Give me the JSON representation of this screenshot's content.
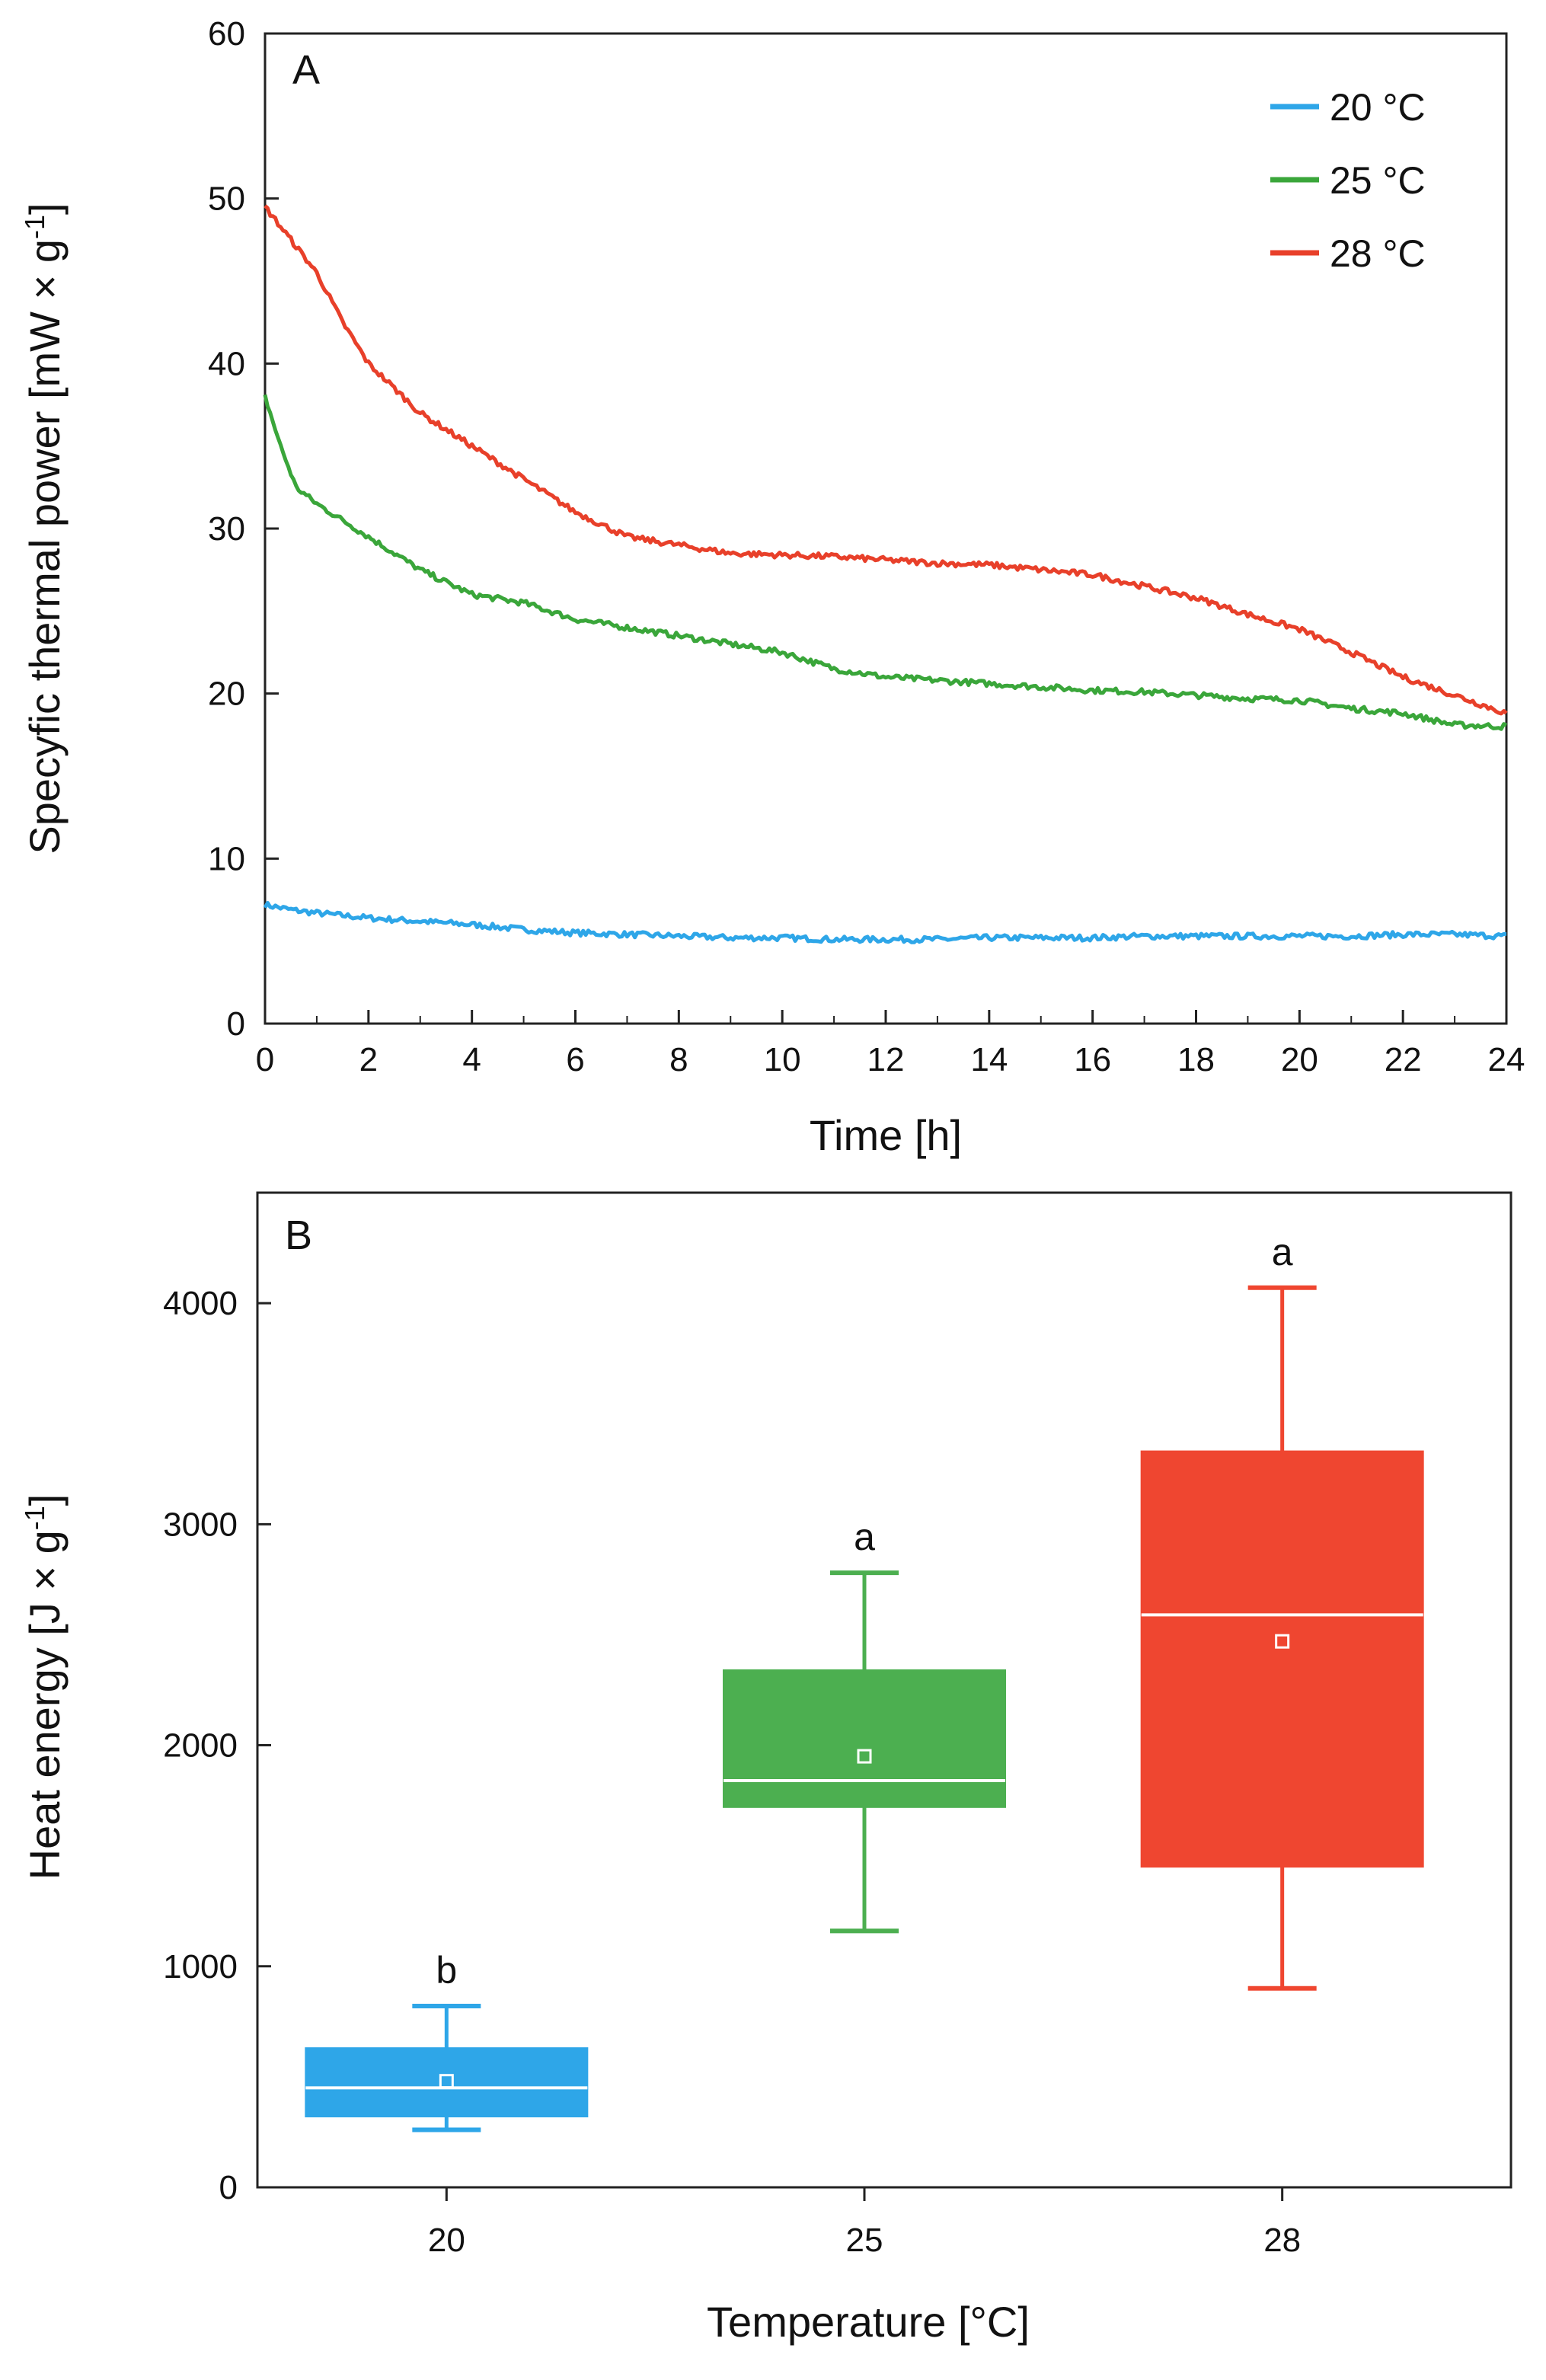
{
  "chart_data": [
    {
      "type": "line",
      "panel_label": "A",
      "xlabel": "Time [h]",
      "ylabel": {
        "main": "Specyfic thermal power [mW × g",
        "sup": "-1",
        "close": "]"
      },
      "xlim": [
        0,
        24
      ],
      "ylim": [
        0,
        60
      ],
      "xticks": [
        0,
        2,
        4,
        6,
        8,
        10,
        12,
        14,
        16,
        18,
        20,
        22,
        24
      ],
      "yticks": [
        0,
        10,
        20,
        30,
        40,
        50,
        60
      ],
      "legend_position": "top-right",
      "series": [
        {
          "name": "20 °C",
          "color": "#2ea6e8",
          "x": [
            0,
            0.5,
            1,
            2,
            3,
            4,
            5,
            6,
            7,
            8,
            9,
            10,
            11,
            12,
            13,
            14,
            15,
            16,
            17,
            18,
            19,
            20,
            21,
            22,
            23,
            24
          ],
          "y": [
            7.2,
            6.9,
            6.7,
            6.4,
            6.2,
            6.0,
            5.7,
            5.5,
            5.4,
            5.3,
            5.2,
            5.2,
            5.1,
            5.1,
            5.1,
            5.2,
            5.2,
            5.2,
            5.3,
            5.3,
            5.3,
            5.3,
            5.3,
            5.4,
            5.4,
            5.3
          ]
        },
        {
          "name": "25 °C",
          "color": "#3aa63a",
          "x": [
            0,
            0.3,
            0.6,
            1,
            2,
            3,
            4,
            5,
            6,
            7,
            8,
            9,
            10,
            11,
            12,
            13,
            14,
            15,
            16,
            17,
            18,
            19,
            20,
            21,
            22,
            23,
            24
          ],
          "y": [
            38,
            35,
            32.5,
            31.5,
            29.5,
            27.5,
            26,
            25.5,
            24.5,
            24,
            23.5,
            23,
            22.5,
            21.5,
            21,
            20.8,
            20.6,
            20.4,
            20.2,
            20.1,
            19.9,
            19.7,
            19.6,
            19.1,
            18.8,
            18.1,
            18
          ]
        },
        {
          "name": "28 °C",
          "color": "#e8402a",
          "x": [
            0,
            0.5,
            1,
            1.5,
            2,
            3,
            4,
            5,
            6,
            7,
            8,
            9,
            10,
            11,
            12,
            13,
            14,
            15,
            16,
            17,
            18,
            19,
            20,
            21,
            22,
            23,
            24
          ],
          "y": [
            49.5,
            47.5,
            45.5,
            42.5,
            40,
            37,
            35,
            33,
            31,
            29.5,
            29,
            28.5,
            28.4,
            28.3,
            28.1,
            27.9,
            27.8,
            27.5,
            27.2,
            26.5,
            25.8,
            24.8,
            23.9,
            22.5,
            21,
            19.9,
            18.8
          ]
        }
      ]
    },
    {
      "type": "box",
      "panel_label": "B",
      "xlabel": "Temperature [°C]",
      "ylabel": {
        "main": "Heat energy [J × g",
        "sup": "-1",
        "close": "]"
      },
      "ylim": [
        0,
        4500
      ],
      "yticks": [
        0,
        1000,
        2000,
        3000,
        4000
      ],
      "categories": [
        "20",
        "25",
        "28"
      ],
      "boxes": [
        {
          "category": "20",
          "color": "#2ea6e8",
          "min": 260,
          "q1": 320,
          "median": 450,
          "mean": 480,
          "q3": 630,
          "max": 820,
          "significance": "b"
        },
        {
          "category": "25",
          "color": "#4caf50",
          "min": 1160,
          "q1": 1720,
          "median": 1840,
          "mean": 1950,
          "q3": 2340,
          "max": 2780,
          "significance": "a"
        },
        {
          "category": "28",
          "color": "#ef4630",
          "min": 900,
          "q1": 1450,
          "median": 2590,
          "mean": 2470,
          "q3": 3330,
          "max": 4070,
          "significance": "a"
        }
      ]
    }
  ]
}
